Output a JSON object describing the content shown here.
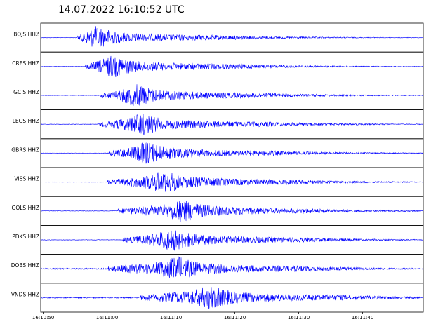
{
  "chart_data": {
    "type": "seismogram",
    "title": "14.07.2022  16:10:52 UTC",
    "xlim": [
      -0.4,
      59.5
    ],
    "xticks": [
      {
        "value": 0,
        "label": "16:10:50"
      },
      {
        "value": 10,
        "label": "16:11:00"
      },
      {
        "value": 20,
        "label": "16:11:10"
      },
      {
        "value": 30,
        "label": "16:11:20"
      },
      {
        "value": 40,
        "label": "16:11:30"
      },
      {
        "value": 50,
        "label": "16:11:40"
      }
    ],
    "series": [
      {
        "name": "BOJS HHZ",
        "color": "#0000ff",
        "onset": 5.3,
        "peak": 8.2
      },
      {
        "name": "CRES HHZ",
        "color": "#0000ff",
        "onset": 6.6,
        "peak": 10.8
      },
      {
        "name": "GCIS HHZ",
        "color": "#0000ff",
        "onset": 8.9,
        "peak": 14.6
      },
      {
        "name": "LEGS HHZ",
        "color": "#0000ff",
        "onset": 8.7,
        "peak": 15.4
      },
      {
        "name": "GBRS HHZ",
        "color": "#0000ff",
        "onset": 10.2,
        "peak": 16.3
      },
      {
        "name": "VISS HHZ",
        "color": "#0000ff",
        "onset": 10,
        "peak": 19
      },
      {
        "name": "GOLS HHZ",
        "color": "#0000ff",
        "onset": 11.6,
        "peak": 22
      },
      {
        "name": "PDKS HHZ",
        "color": "#0000ff",
        "onset": 12.5,
        "peak": 20.2
      },
      {
        "name": "DOBS HHZ",
        "color": "#0000ff",
        "onset": 10.2,
        "peak": 21.1
      },
      {
        "name": "VNDS HHZ",
        "color": "#0000ff",
        "onset": 15.2,
        "peak": 26.2
      }
    ]
  }
}
